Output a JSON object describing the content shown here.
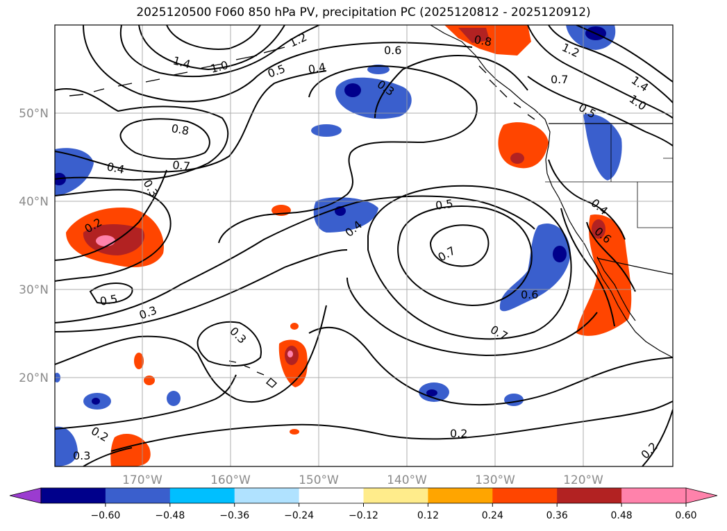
{
  "title": "2025120500 F060 850 hPa PV, precipitation PC (2025120812 - 2025120912)",
  "map": {
    "lat_labels": [
      "50°N",
      "40°N",
      "30°N",
      "20°N"
    ],
    "lon_labels": [
      "170°W",
      "160°W",
      "150°W",
      "140°W",
      "130°W",
      "120°W"
    ],
    "contour_labels": [
      "1.4",
      "1.0",
      "1.2",
      "0.5",
      "0.4",
      "0.6",
      "0.8",
      "1.2",
      "0.7",
      "1.4",
      "1.0",
      "0.3",
      "0.5",
      "0.8",
      "0.7",
      "0.4",
      "0.3",
      "0.2",
      "0.5",
      "0.4",
      "0.7",
      "0.4",
      "0.6",
      "0.5",
      "0.3",
      "0.3",
      "0.6",
      "0.7",
      "0.2",
      "0.3",
      "0.2",
      "0.2"
    ]
  },
  "colorbar": {
    "ticks": [
      "−0.60",
      "−0.48",
      "−0.36",
      "−0.24",
      "−0.12",
      "0.12",
      "0.24",
      "0.36",
      "0.48",
      "0.60"
    ],
    "colors": [
      "#9b3bd0",
      "#00008b",
      "#3a5fcd",
      "#00bfff",
      "#b0e2ff",
      "#ffffff",
      "#ffec8b",
      "#ffa500",
      "#ff4500",
      "#b22222",
      "#ff82ab",
      "#ff82ab"
    ]
  }
}
